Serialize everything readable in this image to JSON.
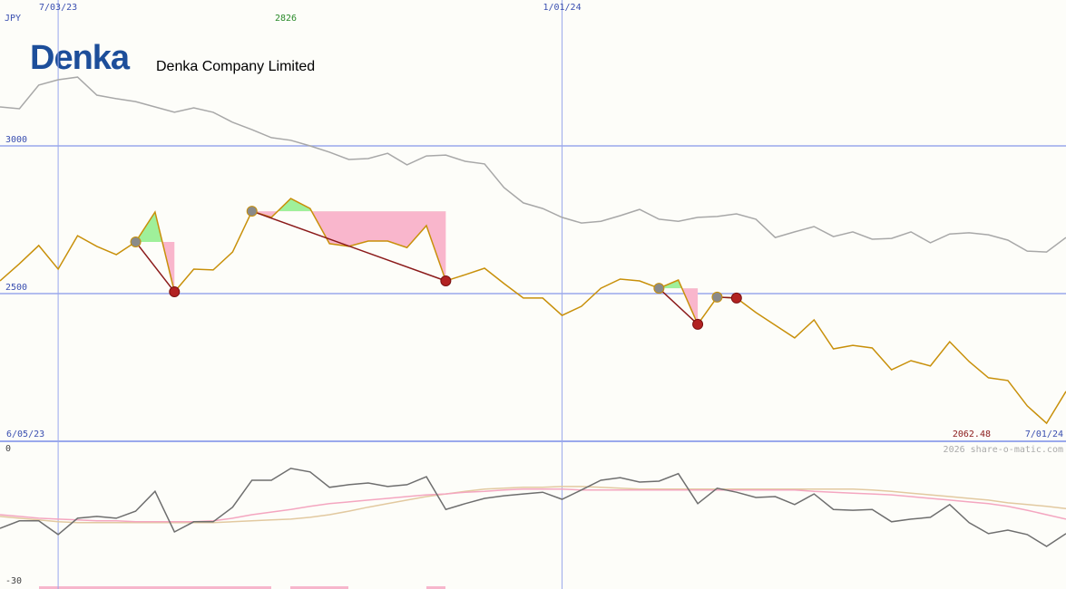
{
  "header": {
    "logo": "Denka",
    "company": "Denka Company Limited",
    "credit": "2026 share-o-matic.com"
  },
  "chart_data": [
    {
      "type": "line",
      "unit_label": "JPY",
      "categories": [
        null,
        null,
        null,
        "7/03/23",
        null,
        null,
        null,
        null,
        null,
        null,
        null,
        null,
        null,
        null,
        null,
        null,
        null,
        null,
        null,
        null,
        null,
        null,
        null,
        null,
        null,
        null,
        null,
        null,
        null,
        "1/01/24",
        null,
        null,
        null,
        null,
        null,
        null,
        null,
        null,
        null,
        null,
        null,
        null,
        null,
        null,
        null,
        null,
        null,
        null,
        null,
        null,
        null,
        null,
        null,
        null,
        null,
        null
      ],
      "start_label": "6/05/23",
      "end_label": "7/01/24",
      "annotations": [
        {
          "text": "2826",
          "color": "#2a8a2a"
        },
        {
          "text": "2062.48",
          "color": "#8b1a1a"
        }
      ],
      "series": [
        {
          "color": "#a8a8a8",
          "values": [
            3132,
            3126,
            3206,
            3224,
            3233,
            3172,
            3160,
            3150,
            3132,
            3114,
            3129,
            3114,
            3080,
            3055,
            3028,
            3019,
            3000,
            2979,
            2954,
            2957,
            2975,
            2936,
            2966,
            2969,
            2948,
            2939,
            2859,
            2807,
            2788,
            2758,
            2739,
            2745,
            2764,
            2785,
            2752,
            2745,
            2758,
            2761,
            2770,
            2752,
            2690,
            2709,
            2727,
            2693,
            2709,
            2684,
            2687,
            2709,
            2672,
            2702,
            2706,
            2699,
            2681,
            2644,
            2641,
            2690
          ]
        },
        {
          "color": "#c8900a",
          "values": [
            2543,
            2601,
            2663,
            2583,
            2696,
            2660,
            2632,
            2675,
            2776,
            2506,
            2583,
            2580,
            2641,
            2779,
            2758,
            2822,
            2788,
            2669,
            2660,
            2678,
            2678,
            2656,
            2730,
            2543,
            2564,
            2586,
            2534,
            2485,
            2485,
            2426,
            2457,
            2518,
            2549,
            2543,
            2518,
            2546,
            2396,
            2488,
            2485,
            2436,
            2393,
            2350,
            2411,
            2313,
            2325,
            2316,
            2242,
            2273,
            2255,
            2337,
            2270,
            2215,
            2206,
            2120,
            2061,
            2169
          ]
        }
      ],
      "ylim": [
        2000,
        3494
      ],
      "yticks": [
        2500,
        3000
      ],
      "grid": true
    },
    {
      "type": "line",
      "series": [
        {
          "color": "#e2c9a0",
          "values": [
            -15.4,
            -15.8,
            -16.2,
            -16.6,
            -16.8,
            -16.8,
            -16.8,
            -16.8,
            -16.8,
            -16.8,
            -16.8,
            -16.8,
            -16.6,
            -16.4,
            -16.2,
            -16.0,
            -15.6,
            -15.0,
            -14.2,
            -13.3,
            -12.5,
            -11.7,
            -10.9,
            -10.3,
            -9.7,
            -9.2,
            -9.0,
            -8.8,
            -8.8,
            -8.6,
            -8.6,
            -8.8,
            -9.0,
            -9.2,
            -9.2,
            -9.2,
            -9.2,
            -9.2,
            -9.2,
            -9.2,
            -9.2,
            -9.2,
            -9.2,
            -9.2,
            -9.2,
            -9.4,
            -9.7,
            -10.1,
            -10.5,
            -10.9,
            -11.3,
            -11.7,
            -12.3,
            -12.7,
            -13.1,
            -13.6
          ]
        },
        {
          "color": "#f4a6c0",
          "values": [
            -15.0,
            -15.4,
            -15.8,
            -16.0,
            -16.2,
            -16.4,
            -16.4,
            -16.6,
            -16.6,
            -16.6,
            -16.6,
            -16.4,
            -15.8,
            -15.0,
            -14.4,
            -13.8,
            -13.1,
            -12.5,
            -12.1,
            -11.7,
            -11.3,
            -10.9,
            -10.5,
            -10.3,
            -9.9,
            -9.7,
            -9.4,
            -9.2,
            -9.2,
            -9.2,
            -9.4,
            -9.4,
            -9.4,
            -9.4,
            -9.4,
            -9.4,
            -9.4,
            -9.4,
            -9.4,
            -9.4,
            -9.4,
            -9.4,
            -9.7,
            -9.9,
            -10.1,
            -10.3,
            -10.5,
            -10.9,
            -11.3,
            -11.7,
            -12.1,
            -12.5,
            -13.1,
            -14.0,
            -15.0,
            -16.0
          ]
        },
        {
          "color": "#6e6e6e",
          "values": [
            -18.1,
            -16.4,
            -16.4,
            -19.5,
            -15.8,
            -15.4,
            -15.8,
            -14.2,
            -9.7,
            -18.9,
            -16.6,
            -16.6,
            -13.3,
            -7.2,
            -7.2,
            -4.5,
            -5.3,
            -8.8,
            -8.2,
            -7.8,
            -8.6,
            -8.2,
            -6.4,
            -13.8,
            -12.5,
            -11.3,
            -10.7,
            -10.3,
            -9.9,
            -11.5,
            -9.4,
            -7.2,
            -6.6,
            -7.6,
            -7.4,
            -5.7,
            -12.5,
            -9.0,
            -9.9,
            -11.1,
            -10.9,
            -12.7,
            -10.3,
            -13.8,
            -14.0,
            -13.8,
            -16.6,
            -16.0,
            -15.6,
            -12.7,
            -16.8,
            -19.3,
            -18.5,
            -19.5,
            -22.2,
            -19.3
          ]
        }
      ],
      "ylim": [
        -30,
        0
      ],
      "yticks": [
        0,
        -30
      ]
    }
  ]
}
